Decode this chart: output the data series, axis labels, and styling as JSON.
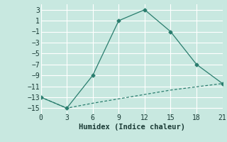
{
  "xlabel": "Humidex (Indice chaleur)",
  "line1_x": [
    0,
    3,
    6,
    9,
    12,
    15,
    18,
    21
  ],
  "line1_y": [
    -13,
    -15,
    -9,
    1,
    3,
    -1,
    -7,
    -10.5
  ],
  "line2_x": [
    0,
    3,
    6,
    9,
    12,
    15,
    18,
    21
  ],
  "line2_y": [
    -13,
    -15,
    -14.1,
    -13.3,
    -12.5,
    -11.7,
    -11.1,
    -10.5
  ],
  "line_color": "#2a7d6e",
  "bg_color": "#c8e8e0",
  "grid_color": "#ffffff",
  "xlim": [
    0,
    21
  ],
  "ylim": [
    -16,
    4
  ],
  "xticks": [
    0,
    3,
    6,
    9,
    12,
    15,
    18,
    21
  ],
  "yticks": [
    3,
    1,
    -1,
    -3,
    -5,
    -7,
    -9,
    -11,
    -13,
    -15
  ],
  "tick_fontsize": 7,
  "xlabel_fontsize": 7.5
}
